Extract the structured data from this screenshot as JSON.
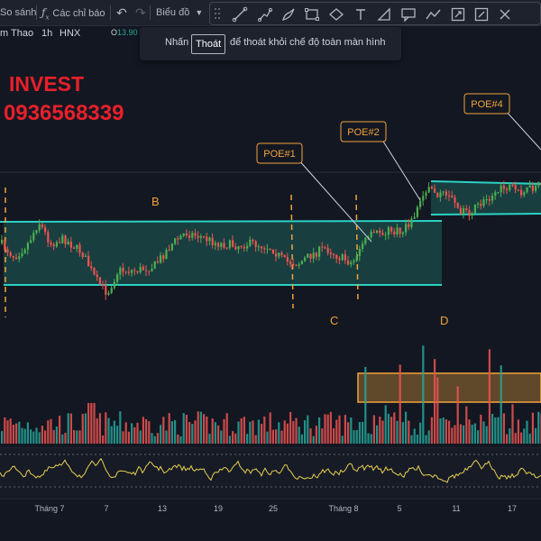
{
  "toolbar": {
    "compare_label": "So sánh",
    "indicators_label": "Các chỉ báo",
    "chart_label": "Biểu đồ"
  },
  "symbol": {
    "name": "m Thao",
    "interval": "1h",
    "exchange": "HNX",
    "ohlc_prefix": "O",
    "ohlc_value": "13.90",
    "status_color": "#26a69a"
  },
  "toast": {
    "before": "Nhấn",
    "key": "Thoát",
    "after": "để thoát khỏi chế độ toàn màn hình"
  },
  "brand": {
    "name": "INVEST",
    "phone": "0936568339",
    "color": "#e8202a"
  },
  "annotations": {
    "b": "B",
    "c": "C",
    "d": "D",
    "poe1": "POE#1",
    "poe2": "POE#2",
    "poe4": "POE#4"
  },
  "x_axis": {
    "labels": [
      "Tháng 7",
      "7",
      "13",
      "19",
      "25",
      "Tháng 8",
      "5",
      "11",
      "17"
    ]
  },
  "colors": {
    "up": "#26a69a",
    "up_candle": "#4caf50",
    "down": "#ef5350",
    "channel": "#2bd1c4",
    "zone": "#f2a33a",
    "marker": "#f2a33a",
    "oscillator": "#e6cf4f"
  },
  "icons": [
    "compare-icon",
    "indicators-icon",
    "undo-icon",
    "redo-icon",
    "chevron-down-icon",
    "drag-handle-icon",
    "trend-line-icon",
    "ray-icon",
    "brush-icon",
    "rectangle-icon",
    "ellipse-icon",
    "text-icon",
    "fib-icon",
    "callout-icon",
    "path-icon",
    "price-range-icon",
    "close-icon"
  ]
}
